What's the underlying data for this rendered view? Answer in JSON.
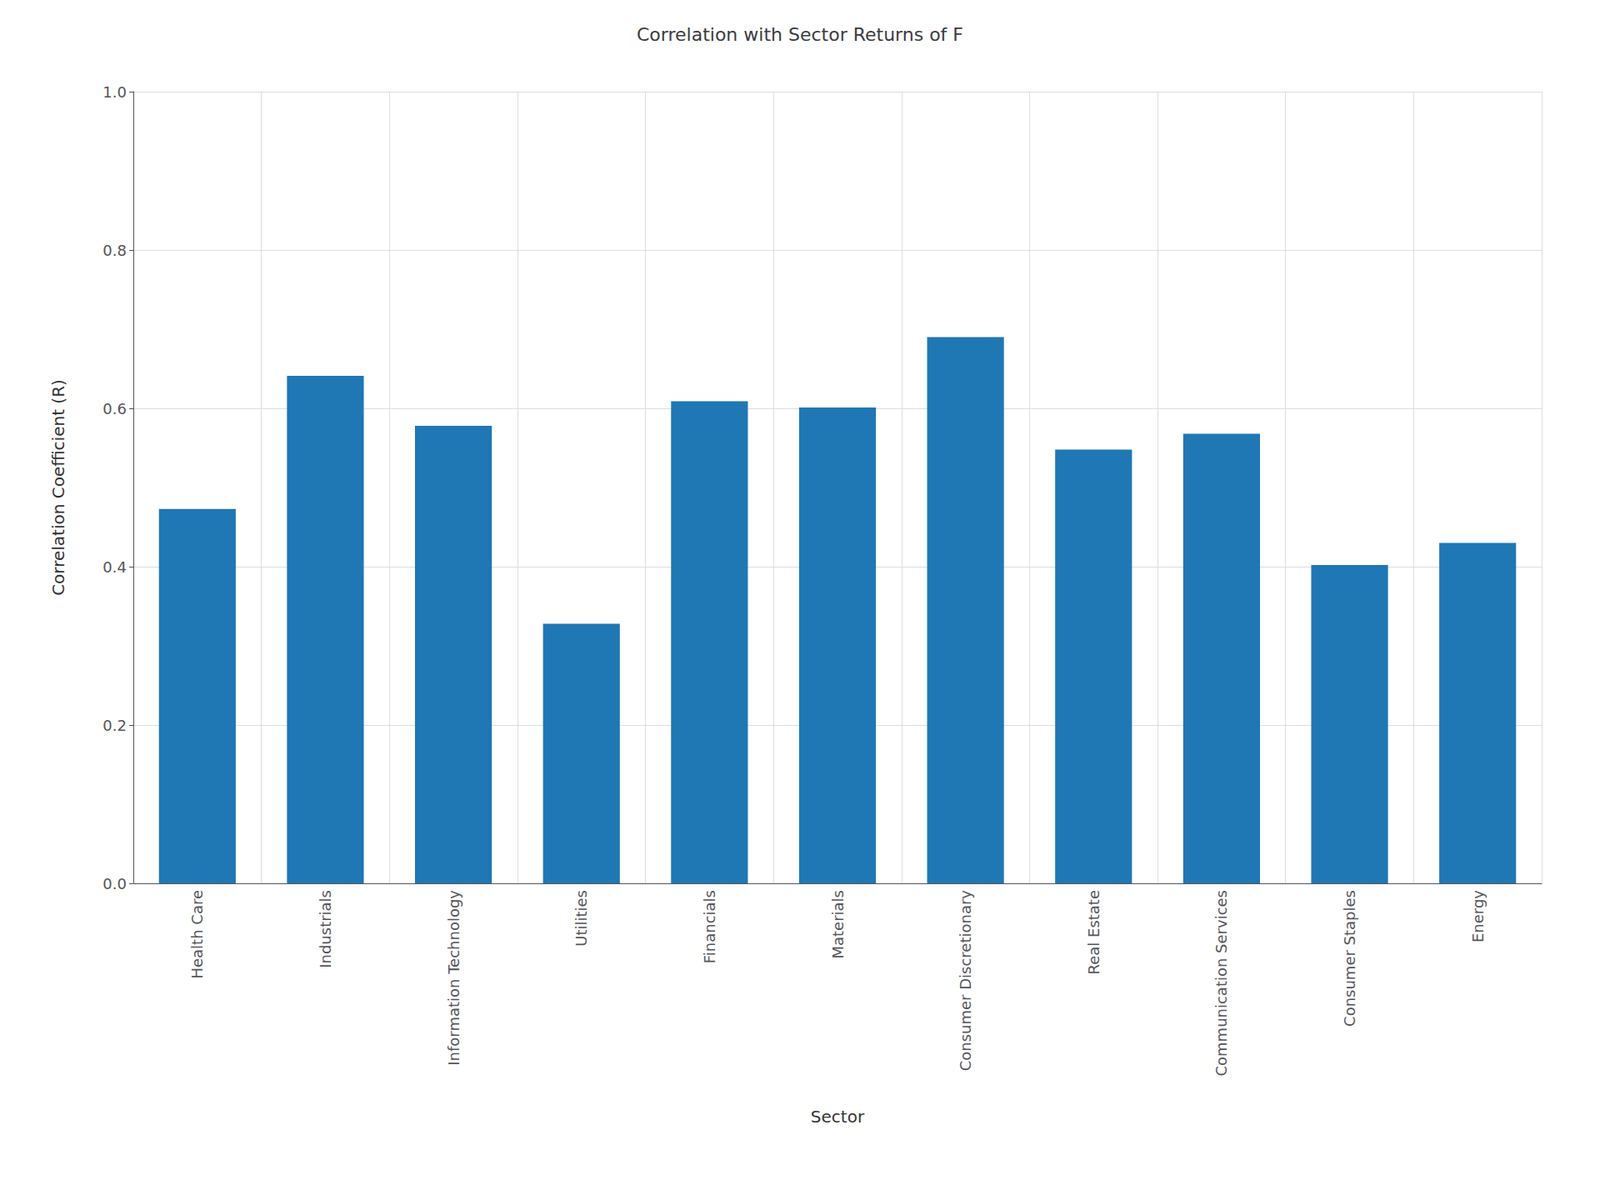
{
  "chart_data": {
    "type": "bar",
    "title": "Correlation with Sector Returns of F",
    "xlabel": "Sector",
    "ylabel": "Correlation Coefficient (R)",
    "categories": [
      "Health Care",
      "Industrials",
      "Information Technology",
      "Utilities",
      "Financials",
      "Materials",
      "Consumer Discretionary",
      "Real Estate",
      "Communication Services",
      "Consumer Staples",
      "Energy"
    ],
    "values": [
      0.473,
      0.641,
      0.578,
      0.328,
      0.609,
      0.601,
      0.69,
      0.548,
      0.568,
      0.402,
      0.43
    ],
    "color": "#1f77b4",
    "ylim": [
      0.0,
      1.0
    ],
    "yticks": [
      {
        "value": 0.0,
        "label": "0.0"
      },
      0.2,
      0.4,
      0.6,
      0.8,
      {
        "value": 1.0,
        "label": "1.0"
      }
    ],
    "grid": true
  }
}
